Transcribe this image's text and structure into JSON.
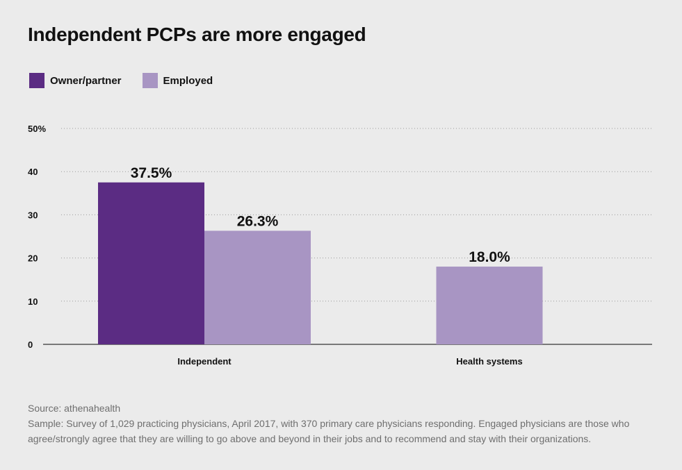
{
  "title": "Independent PCPs are more engaged",
  "legend": [
    {
      "label": "Owner/partner",
      "color": "#5b2c83"
    },
    {
      "label": "Employed",
      "color": "#a895c3"
    }
  ],
  "chart_data": {
    "type": "bar",
    "title": "Independent PCPs are more engaged",
    "categories": [
      "Independent",
      "Health systems"
    ],
    "series": [
      {
        "name": "Owner/partner",
        "color": "#5b2c83",
        "values": [
          37.5,
          null
        ],
        "labels": [
          "37.5%",
          ""
        ]
      },
      {
        "name": "Employed",
        "color": "#a895c3",
        "values": [
          26.3,
          18.0
        ],
        "labels": [
          "26.3%",
          "18.0%"
        ]
      }
    ],
    "ylim": [
      0,
      50
    ],
    "yticks": [
      {
        "value": 0,
        "label": "0"
      },
      {
        "value": 10,
        "label": "10"
      },
      {
        "value": 20,
        "label": "20"
      },
      {
        "value": 30,
        "label": "30"
      },
      {
        "value": 40,
        "label": "40"
      },
      {
        "value": 50,
        "label": "50%"
      }
    ],
    "grid": true,
    "legend_position": "top-left"
  },
  "notes": {
    "source": "Source: athenahealth",
    "sample": "Sample: Survey of 1,029 practicing physicians, April 2017, with 370 primary care physicians responding. Engaged physicians are those who agree/strongly agree that they are willing to go above and beyond in their jobs and to recommend and stay with their organizations."
  }
}
